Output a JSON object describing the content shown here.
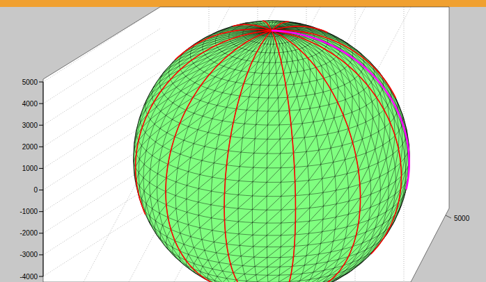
{
  "chart_data": {
    "type": "surface3d",
    "color": "#80ff80",
    "radius": 6378,
    "zlim": [
      -4000,
      5000
    ],
    "zticks": [
      -4000,
      -3000,
      -2000,
      -1000,
      0,
      1000,
      2000,
      3000,
      4000,
      5000
    ],
    "yticks": [
      5000
    ],
    "grid": true,
    "meridians": {
      "color": "#ff0000",
      "lon": [
        0,
        30,
        60,
        90,
        120,
        150,
        180,
        210,
        240,
        270,
        300,
        330
      ]
    },
    "highlight": {
      "color": "#ff00ff",
      "lon": 15
    }
  }
}
